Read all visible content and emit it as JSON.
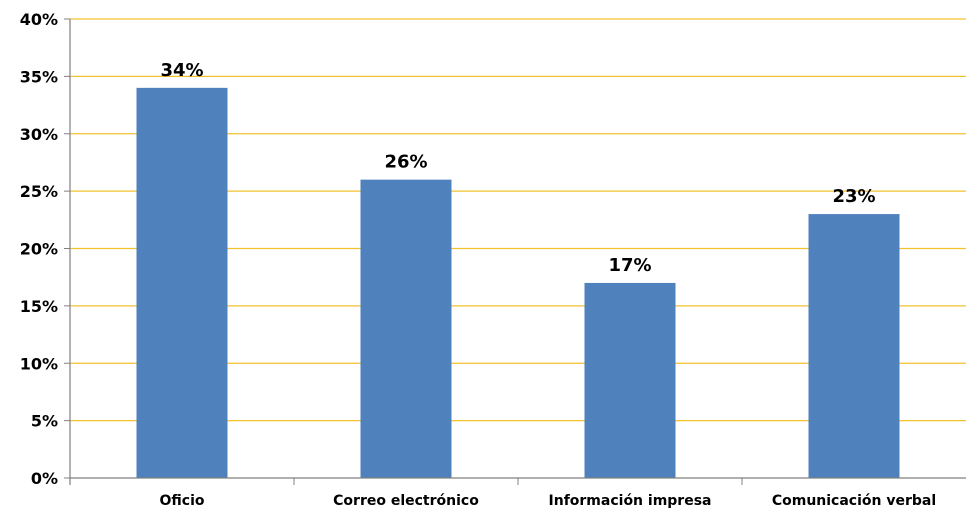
{
  "chart_data": {
    "type": "bar",
    "categories": [
      "Oficio",
      "Correo electrónico",
      "Información impresa",
      "Comunicación verbal"
    ],
    "values": [
      34,
      26,
      17,
      23
    ],
    "data_labels": [
      "34%",
      "26%",
      "17%",
      "23%"
    ],
    "y_ticks": [
      "0%",
      "5%",
      "10%",
      "15%",
      "20%",
      "25%",
      "30%",
      "35%",
      "40%"
    ],
    "ylim": [
      0,
      40
    ],
    "y_unit": "%",
    "grid": true,
    "legend": "none",
    "title": "",
    "xlabel": "",
    "ylabel": "",
    "colors": {
      "bar": "#4F81BD",
      "gridline": "#F2C12E",
      "axis": "#808080"
    }
  }
}
